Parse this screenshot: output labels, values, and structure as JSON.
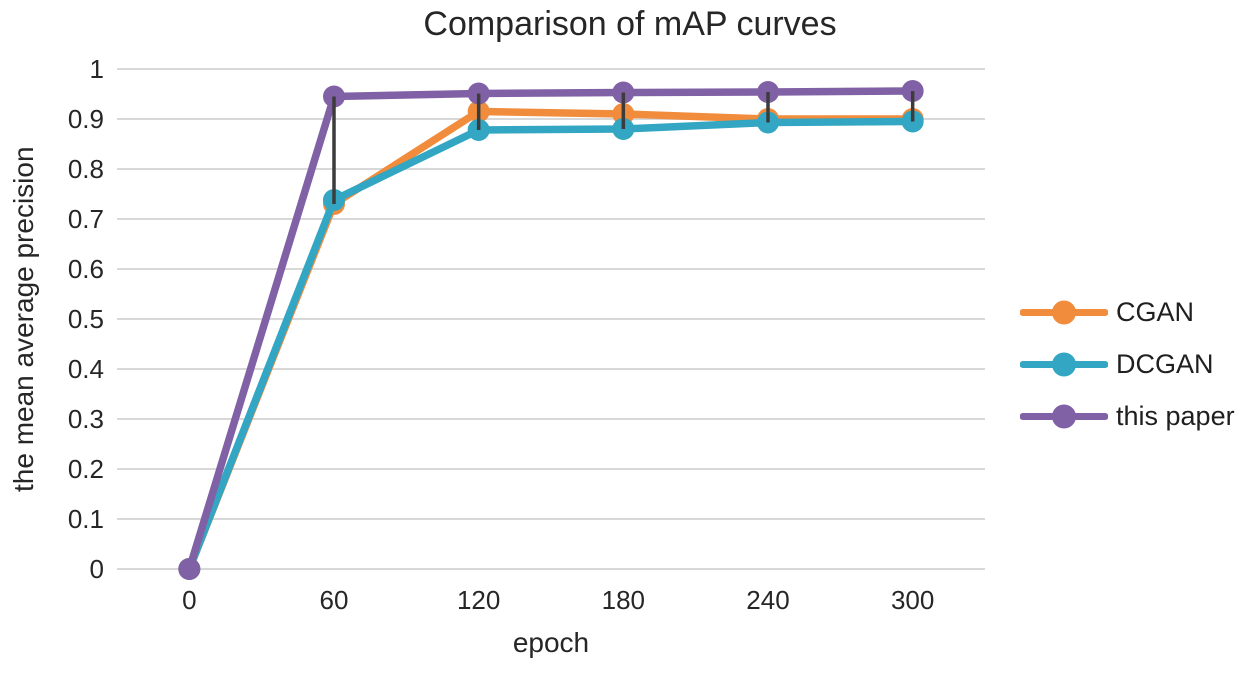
{
  "chart_data": {
    "type": "line",
    "title": "Comparison of mAP curves",
    "xlabel": "epoch",
    "ylabel": "the mean average precision",
    "categories": [
      "0",
      "60",
      "120",
      "180",
      "240",
      "300"
    ],
    "series": [
      {
        "name": "CGAN",
        "color": "#F08C3C",
        "values": [
          0,
          0.73,
          0.915,
          0.91,
          0.9,
          0.9
        ]
      },
      {
        "name": "DCGAN",
        "color": "#32A6C2",
        "values": [
          0,
          0.738,
          0.878,
          0.88,
          0.893,
          0.895
        ]
      },
      {
        "name": "this paper",
        "color": "#8161A5",
        "values": [
          0,
          0.945,
          0.951,
          0.953,
          0.954,
          0.956
        ]
      }
    ],
    "y_ticks": [
      0,
      0.1,
      0.2,
      0.3,
      0.4,
      0.5,
      0.6,
      0.7,
      0.8,
      0.9,
      1
    ],
    "ylim": [
      0,
      1
    ],
    "grid": true,
    "legend_position": "right",
    "high_low_lines": true,
    "colors": {
      "gridline": "#D8D8D8",
      "text": "#262626",
      "high_low": "#3C3C3C",
      "background": "#FFFFFF"
    }
  }
}
